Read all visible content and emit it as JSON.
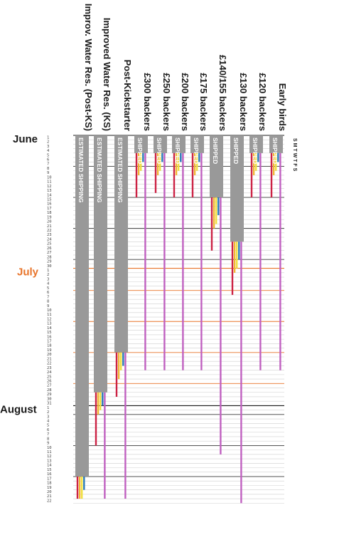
{
  "chart_data": {
    "type": "gantt",
    "months": [
      {
        "name": "June",
        "start_day": 1,
        "days": 30,
        "color": "#1a1a1a"
      },
      {
        "name": "July",
        "start_day": 31,
        "days": 31,
        "color": "#e8742a"
      },
      {
        "name": "August",
        "start_day": 62,
        "days": 22,
        "color": "#1a1a1a"
      }
    ],
    "day_of_week_header": "S M T W T F S",
    "columns": [
      {
        "name": "Improv. Water Res. (Post-KS)",
        "status_label": "ESTIMATED SHIPPING",
        "bar_end_day": 77,
        "ship_start_day": 78,
        "marks": [
          {
            "color": "#cc2244",
            "end_day": 82
          },
          {
            "color": "#f2b632",
            "end_day": 82
          },
          {
            "color": "#f0e040",
            "end_day": 82
          },
          {
            "color": "#2a7ab8",
            "end_day": 80
          }
        ]
      },
      {
        "name": "Improved Water Res. (KS)",
        "status_label": "ESTIMATED SHIPPING",
        "bar_end_day": 58,
        "ship_start_day": 59,
        "marks": [
          {
            "color": "#cc2244",
            "end_day": 70
          },
          {
            "color": "#f2b632",
            "end_day": 63
          },
          {
            "color": "#f0e040",
            "end_day": 62
          },
          {
            "color": "#2a7ab8",
            "end_day": 61
          },
          {
            "color": "#c060c0",
            "end_day": 82
          }
        ]
      },
      {
        "name": "Post-Kickstarter",
        "status_label": "ESTIMATED SHIPPING",
        "bar_end_day": 49,
        "ship_start_day": 50,
        "marks": [
          {
            "color": "#cc2244",
            "end_day": 59
          },
          {
            "color": "#f2b632",
            "end_day": 55
          },
          {
            "color": "#f0e040",
            "end_day": 53
          },
          {
            "color": "#2a7ab8",
            "end_day": 52
          },
          {
            "color": "#c060c0",
            "end_day": 82
          }
        ]
      },
      {
        "name": "£300 backers",
        "status_label": "SHIPPED",
        "bar_end_day": 4,
        "ship_start_day": 5,
        "marks": [
          {
            "color": "#cc2244",
            "end_day": 14
          },
          {
            "color": "#f2b632",
            "end_day": 9
          },
          {
            "color": "#f0e040",
            "end_day": 8
          },
          {
            "color": "#2a7ab8",
            "end_day": 6
          },
          {
            "color": "#c060c0",
            "end_day": 53
          }
        ]
      },
      {
        "name": "£250 backers",
        "status_label": "SHIPPED",
        "bar_end_day": 4,
        "ship_start_day": 5,
        "marks": [
          {
            "color": "#cc2244",
            "end_day": 13
          },
          {
            "color": "#f2b632",
            "end_day": 9
          },
          {
            "color": "#f0e040",
            "end_day": 8
          },
          {
            "color": "#2a7ab8",
            "end_day": 6
          },
          {
            "color": "#c060c0",
            "end_day": 53
          }
        ]
      },
      {
        "name": "£200 backers",
        "status_label": "SHIPPED",
        "bar_end_day": 4,
        "ship_start_day": 5,
        "marks": [
          {
            "color": "#cc2244",
            "end_day": 14
          },
          {
            "color": "#f2b632",
            "end_day": 9
          },
          {
            "color": "#f0e040",
            "end_day": 8
          },
          {
            "color": "#2a7ab8",
            "end_day": 6
          },
          {
            "color": "#c060c0",
            "end_day": 53
          }
        ]
      },
      {
        "name": "£175 backers",
        "status_label": "SHIPPED",
        "bar_end_day": 4,
        "ship_start_day": 5,
        "marks": [
          {
            "color": "#cc2244",
            "end_day": 14
          },
          {
            "color": "#f2b632",
            "end_day": 9
          },
          {
            "color": "#f0e040",
            "end_day": 8
          },
          {
            "color": "#2a7ab8",
            "end_day": 6
          },
          {
            "color": "#c060c0",
            "end_day": 53
          }
        ]
      },
      {
        "name": "£140/155 backers",
        "status_label": "SHIPPED",
        "bar_end_day": 14,
        "ship_start_day": 15,
        "marks": [
          {
            "color": "#cc2244",
            "end_day": 26
          },
          {
            "color": "#f2b632",
            "end_day": 21
          },
          {
            "color": "#f0e040",
            "end_day": 20
          },
          {
            "color": "#2a7ab8",
            "end_day": 18
          },
          {
            "color": "#c060c0",
            "end_day": 72
          }
        ]
      },
      {
        "name": "£130 backers",
        "status_label": "SHIPPED",
        "bar_end_day": 24,
        "ship_start_day": 25,
        "marks": [
          {
            "color": "#cc2244",
            "end_day": 36
          },
          {
            "color": "#f2b632",
            "end_day": 31
          },
          {
            "color": "#f0e040",
            "end_day": 30
          },
          {
            "color": "#2a7ab8",
            "end_day": 28
          },
          {
            "color": "#c060c0",
            "end_day": 83
          }
        ]
      },
      {
        "name": "£120 backers",
        "status_label": "SHIPPED",
        "bar_end_day": 4,
        "ship_start_day": 5,
        "marks": [
          {
            "color": "#cc2244",
            "end_day": 14
          },
          {
            "color": "#f2b632",
            "end_day": 9
          },
          {
            "color": "#f0e040",
            "end_day": 8
          },
          {
            "color": "#2a7ab8",
            "end_day": 6
          },
          {
            "color": "#c060c0",
            "end_day": 53
          }
        ]
      },
      {
        "name": "Early birds",
        "status_label": "SHIPPED",
        "bar_end_day": 4,
        "ship_start_day": 5,
        "marks": [
          {
            "color": "#cc2244",
            "end_day": 14
          },
          {
            "color": "#f2b632",
            "end_day": 9
          },
          {
            "color": "#f0e040",
            "end_day": 8
          },
          {
            "color": "#2a7ab8",
            "end_day": 6
          },
          {
            "color": "#c060c0",
            "end_day": 53
          }
        ]
      }
    ],
    "colors": {
      "bar": "#999999",
      "week_line": "#3a3a3a",
      "day_line": "#cfcfcf",
      "july_line": "#e8742a"
    }
  }
}
